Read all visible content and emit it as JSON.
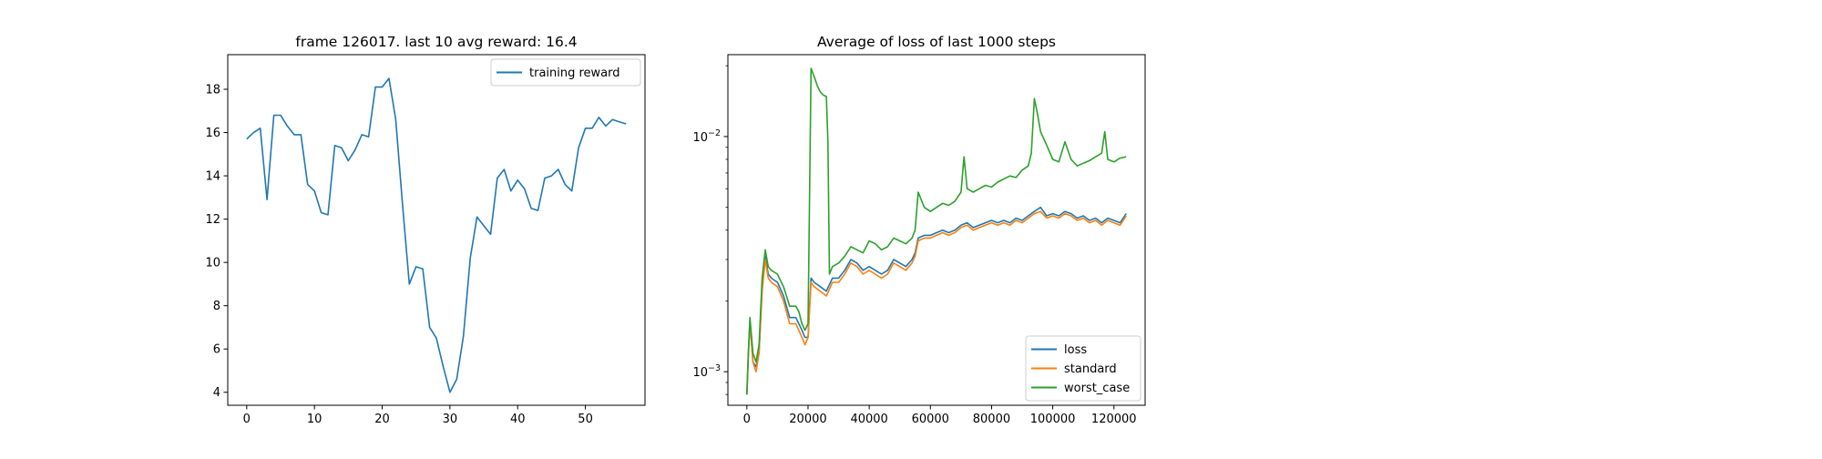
{
  "chart_data": [
    {
      "type": "line",
      "title": "frame 126017. last 10 avg reward: 16.4",
      "xlabel": "",
      "ylabel": "",
      "xlim": [
        -2.8,
        58.8
      ],
      "ylim": [
        3.4,
        19.6
      ],
      "xticks": [
        0,
        10,
        20,
        30,
        40,
        50
      ],
      "yticks": [
        4,
        6,
        8,
        10,
        12,
        14,
        16,
        18
      ],
      "yscale": "linear",
      "legend_position": "upper right",
      "grid": false,
      "series": [
        {
          "name": "training reward",
          "color": "#1f77b4",
          "x": [
            0,
            1,
            2,
            3,
            4,
            5,
            6,
            7,
            8,
            9,
            10,
            11,
            12,
            13,
            14,
            15,
            16,
            17,
            18,
            19,
            20,
            21,
            22,
            23,
            24,
            25,
            26,
            27,
            28,
            29,
            30,
            31,
            32,
            33,
            34,
            35,
            36,
            37,
            38,
            39,
            40,
            41,
            42,
            43,
            44,
            45,
            46,
            47,
            48,
            49,
            50,
            51,
            52,
            53,
            54,
            55,
            56
          ],
          "values": [
            15.7,
            16.0,
            16.2,
            12.9,
            16.8,
            16.8,
            16.3,
            15.9,
            15.9,
            13.6,
            13.3,
            12.3,
            12.2,
            15.4,
            15.3,
            14.7,
            15.2,
            15.9,
            15.8,
            18.1,
            18.1,
            18.5,
            16.6,
            12.7,
            9.0,
            9.8,
            9.7,
            7.0,
            6.5,
            5.2,
            4.0,
            4.6,
            6.6,
            10.2,
            12.1,
            11.7,
            11.3,
            13.9,
            14.3,
            13.3,
            13.8,
            13.4,
            12.5,
            12.4,
            13.9,
            14.0,
            14.3,
            13.6,
            13.3,
            15.3,
            16.2,
            16.2,
            16.7,
            16.3,
            16.6,
            16.5,
            16.4
          ]
        }
      ]
    },
    {
      "type": "line",
      "title": "Average of loss of last 1000 steps",
      "xlabel": "",
      "ylabel": "",
      "xlim": [
        -6200,
        130200
      ],
      "ylim": [
        0.00072,
        0.0223
      ],
      "xticks": [
        0,
        20000,
        40000,
        60000,
        80000,
        100000,
        120000
      ],
      "yscale": "log",
      "yticks": [
        {
          "value": 0.001,
          "base": "10",
          "exp": "−3"
        },
        {
          "value": 0.01,
          "base": "10",
          "exp": "−2"
        }
      ],
      "legend_position": "lower right",
      "grid": false,
      "series": [
        {
          "name": "loss",
          "color": "#1f77b4",
          "x": [
            0,
            500,
            1000,
            2000,
            3000,
            4000,
            5000,
            6000,
            7000,
            8000,
            10000,
            12000,
            14000,
            16000,
            17000,
            18000,
            19000,
            20000,
            21000,
            22000,
            24000,
            26000,
            28000,
            30000,
            32000,
            34000,
            36000,
            38000,
            40000,
            42000,
            44000,
            46000,
            48000,
            50000,
            52000,
            54000,
            55000,
            56000,
            58000,
            60000,
            62000,
            64000,
            66000,
            68000,
            70000,
            72000,
            74000,
            76000,
            78000,
            80000,
            82000,
            84000,
            86000,
            88000,
            90000,
            92000,
            94000,
            96000,
            98000,
            100000,
            102000,
            104000,
            106000,
            108000,
            110000,
            112000,
            114000,
            116000,
            118000,
            120000,
            122000,
            124000
          ],
          "values": [
            0.0008,
            0.0012,
            0.00165,
            0.0011,
            0.00105,
            0.0012,
            0.0023,
            0.0031,
            0.0026,
            0.0025,
            0.0024,
            0.0021,
            0.0017,
            0.0017,
            0.0016,
            0.0015,
            0.0014,
            0.0014,
            0.0025,
            0.0024,
            0.0023,
            0.0022,
            0.0025,
            0.0025,
            0.0027,
            0.003,
            0.0029,
            0.0027,
            0.0028,
            0.0027,
            0.0026,
            0.0027,
            0.003,
            0.0029,
            0.0028,
            0.003,
            0.0032,
            0.0037,
            0.0038,
            0.0038,
            0.0039,
            0.004,
            0.0039,
            0.004,
            0.0042,
            0.0043,
            0.0041,
            0.0042,
            0.0043,
            0.0044,
            0.0043,
            0.0044,
            0.0043,
            0.0045,
            0.0044,
            0.0046,
            0.0048,
            0.005,
            0.0046,
            0.0047,
            0.0046,
            0.0048,
            0.0047,
            0.0045,
            0.0046,
            0.0044,
            0.0045,
            0.0043,
            0.0045,
            0.0044,
            0.0043,
            0.0047
          ]
        },
        {
          "name": "standard",
          "color": "#ff7f0e",
          "x": [
            0,
            500,
            1000,
            2000,
            3000,
            4000,
            5000,
            6000,
            7000,
            8000,
            10000,
            12000,
            14000,
            16000,
            17000,
            18000,
            19000,
            20000,
            21000,
            22000,
            24000,
            26000,
            28000,
            30000,
            32000,
            34000,
            36000,
            38000,
            40000,
            42000,
            44000,
            46000,
            48000,
            50000,
            52000,
            54000,
            55000,
            56000,
            58000,
            60000,
            62000,
            64000,
            66000,
            68000,
            70000,
            72000,
            74000,
            76000,
            78000,
            80000,
            82000,
            84000,
            86000,
            88000,
            90000,
            92000,
            94000,
            96000,
            98000,
            100000,
            102000,
            104000,
            106000,
            108000,
            110000,
            112000,
            114000,
            116000,
            118000,
            120000,
            122000,
            124000
          ],
          "values": [
            0.0008,
            0.0012,
            0.0016,
            0.0011,
            0.001,
            0.0012,
            0.0022,
            0.003,
            0.0025,
            0.0024,
            0.0023,
            0.002,
            0.0016,
            0.0016,
            0.0015,
            0.0014,
            0.0013,
            0.0014,
            0.0024,
            0.0023,
            0.0022,
            0.0021,
            0.0024,
            0.0024,
            0.0026,
            0.0029,
            0.0028,
            0.0026,
            0.0027,
            0.0026,
            0.0025,
            0.0026,
            0.0029,
            0.0028,
            0.0027,
            0.0029,
            0.0031,
            0.0036,
            0.0037,
            0.0037,
            0.0038,
            0.0039,
            0.0038,
            0.0039,
            0.0041,
            0.0042,
            0.004,
            0.0041,
            0.0042,
            0.0043,
            0.0042,
            0.0043,
            0.0042,
            0.0044,
            0.0043,
            0.0045,
            0.0047,
            0.0048,
            0.0045,
            0.0046,
            0.0045,
            0.0047,
            0.0046,
            0.0044,
            0.0045,
            0.0043,
            0.0044,
            0.0042,
            0.0044,
            0.0043,
            0.0042,
            0.0046
          ]
        },
        {
          "name": "worst_case",
          "color": "#2ca02c",
          "x": [
            0,
            500,
            1000,
            2000,
            3000,
            4000,
            5000,
            6000,
            7000,
            8000,
            10000,
            12000,
            14000,
            16000,
            17000,
            18000,
            19000,
            20000,
            21000,
            22000,
            23000,
            24000,
            25000,
            26000,
            26500,
            27000,
            28000,
            30000,
            32000,
            34000,
            36000,
            38000,
            40000,
            42000,
            44000,
            46000,
            48000,
            50000,
            52000,
            54000,
            55000,
            56000,
            58000,
            60000,
            62000,
            64000,
            66000,
            68000,
            70000,
            71000,
            72000,
            74000,
            76000,
            78000,
            80000,
            82000,
            84000,
            86000,
            88000,
            90000,
            92000,
            93000,
            94000,
            95000,
            96000,
            98000,
            100000,
            102000,
            104000,
            106000,
            108000,
            110000,
            112000,
            114000,
            116000,
            117000,
            118000,
            120000,
            122000,
            124000
          ],
          "values": [
            0.0008,
            0.0012,
            0.0017,
            0.0012,
            0.0011,
            0.0013,
            0.0025,
            0.0033,
            0.0028,
            0.0027,
            0.0026,
            0.0023,
            0.0019,
            0.0019,
            0.0018,
            0.0016,
            0.0015,
            0.0016,
            0.0195,
            0.018,
            0.0165,
            0.0155,
            0.015,
            0.0148,
            0.0095,
            0.0026,
            0.0028,
            0.0029,
            0.0031,
            0.0034,
            0.0033,
            0.0032,
            0.0036,
            0.0035,
            0.0033,
            0.0034,
            0.0037,
            0.0036,
            0.0035,
            0.0037,
            0.004,
            0.0058,
            0.005,
            0.0048,
            0.005,
            0.0052,
            0.0051,
            0.0053,
            0.0058,
            0.0082,
            0.006,
            0.0058,
            0.006,
            0.0062,
            0.0061,
            0.0064,
            0.0066,
            0.0068,
            0.0067,
            0.0072,
            0.0075,
            0.0085,
            0.0145,
            0.0125,
            0.0105,
            0.0092,
            0.008,
            0.0078,
            0.0095,
            0.008,
            0.0075,
            0.0077,
            0.0079,
            0.0082,
            0.0085,
            0.0105,
            0.008,
            0.0078,
            0.0081,
            0.0082
          ]
        }
      ]
    }
  ]
}
